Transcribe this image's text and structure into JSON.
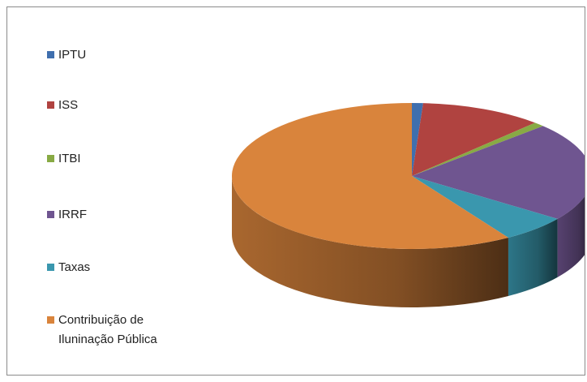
{
  "chart_data": {
    "type": "pie3d",
    "categories": [
      "IPTU",
      "ISS",
      "ITBI",
      "IRRF",
      "Taxas",
      "Contribuição de Iluninação Pública"
    ],
    "values": [
      1,
      11,
      1,
      22,
      6,
      59
    ],
    "colors": [
      "#3f6fae",
      "#b04340",
      "#88aa44",
      "#6f5590",
      "#3a97ae",
      "#d9843c"
    ],
    "legend": "left"
  }
}
